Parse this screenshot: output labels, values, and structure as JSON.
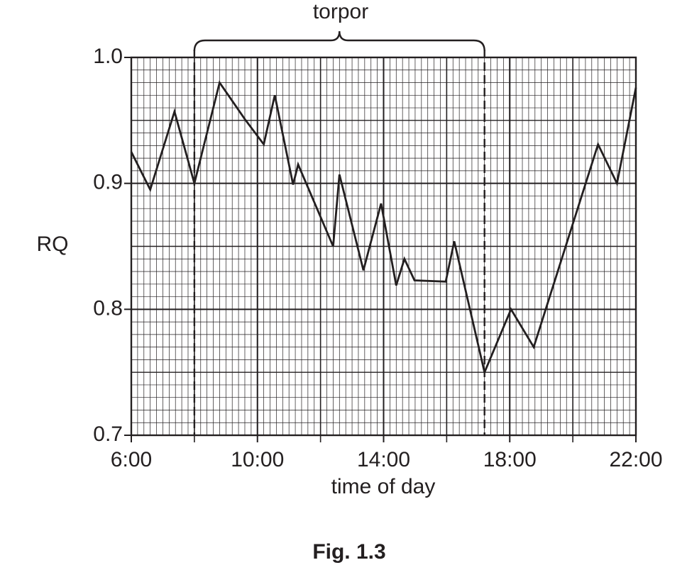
{
  "chart_data": {
    "type": "line",
    "title": "Fig. 1.3",
    "xlabel": "time of day",
    "ylabel": "RQ",
    "annotation": "torpor",
    "torpor_range": [
      8,
      17.2
    ],
    "x": [
      6,
      6.6,
      7.37,
      8,
      8.8,
      9.6,
      10.2,
      10.55,
      11.13,
      11.29,
      12.4,
      12.6,
      13.36,
      13.92,
      14.4,
      14.66,
      14.98,
      15.97,
      16.24,
      17.2,
      18.04,
      18.76,
      20.8,
      21.4,
      22
    ],
    "series": [
      {
        "name": "RQ",
        "color": "#231f20",
        "values": [
          0.925,
          0.895,
          0.957,
          0.9,
          0.98,
          0.951,
          0.931,
          0.97,
          0.899,
          0.915,
          0.85,
          0.907,
          0.831,
          0.884,
          0.819,
          0.84,
          0.823,
          0.822,
          0.854,
          0.75,
          0.8,
          0.77,
          0.931,
          0.9,
          0.976
        ]
      }
    ],
    "xlim": [
      6,
      22
    ],
    "xticks": [
      {
        "value": 6,
        "label": "6:00"
      },
      {
        "value": 10,
        "label": "10:00"
      },
      {
        "value": 14,
        "label": "14:00"
      },
      {
        "value": 18,
        "label": "18:00"
      },
      {
        "value": 22,
        "label": "22:00"
      }
    ],
    "ylim": [
      0.7,
      1
    ],
    "yticks": [
      0.7,
      0.8,
      0.9,
      {
        "value": 1,
        "label": "1.0"
      }
    ],
    "grid": true
  }
}
